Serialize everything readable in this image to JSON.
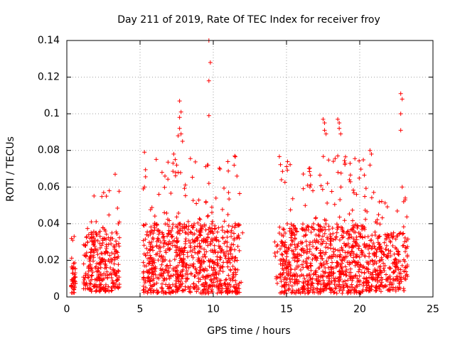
{
  "chart_data": {
    "type": "scatter",
    "title": "Day 211 of 2019, Rate Of TEC Index for receiver froy",
    "xlabel": "GPS time / hours",
    "ylabel": "ROTI / TECUs",
    "xlim": [
      0,
      25
    ],
    "ylim": [
      0,
      0.14
    ],
    "xticks": [
      "0",
      "5",
      "10",
      "15",
      "20",
      "25"
    ],
    "yticks": [
      "0",
      "0.02",
      "0.04",
      "0.06",
      "0.08",
      "0.1",
      "0.12",
      "0.14"
    ],
    "grid": true,
    "marker": "+",
    "color": "#ff0000",
    "bursts": [
      {
        "x_range": [
          0.3,
          0.6
        ],
        "y_base": [
          0.002,
          0.02
        ],
        "y_peak": 0.034,
        "count": 45
      },
      {
        "x_range": [
          1.1,
          3.6
        ],
        "y_base": [
          0.003,
          0.035
        ],
        "y_peak": 0.058,
        "count": 300
      },
      {
        "x_range": [
          5.2,
          11.8
        ],
        "y_base": [
          0.002,
          0.04
        ],
        "y_peak": 0.079,
        "count": 850
      },
      {
        "x_range": [
          14.2,
          14.4
        ],
        "y_base": [
          0.005,
          0.03
        ],
        "y_peak": 0.03,
        "count": 6
      },
      {
        "x_range": [
          14.5,
          20.5
        ],
        "y_base": [
          0.002,
          0.04
        ],
        "y_peak": 0.077,
        "count": 800
      },
      {
        "x_range": [
          20.5,
          23.3
        ],
        "y_base": [
          0.003,
          0.035
        ],
        "y_peak": 0.058,
        "count": 300
      }
    ],
    "points": [
      {
        "x": 0.5,
        "y": 0.033
      },
      {
        "x": 0.4,
        "y": 0.031
      },
      {
        "x": 3.3,
        "y": 0.067
      },
      {
        "x": 2.9,
        "y": 0.058
      },
      {
        "x": 2.7,
        "y": 0.055
      },
      {
        "x": 5.3,
        "y": 0.079
      },
      {
        "x": 5.3,
        "y": 0.06
      },
      {
        "x": 6.5,
        "y": 0.068
      },
      {
        "x": 6.7,
        "y": 0.066
      },
      {
        "x": 7.3,
        "y": 0.078
      },
      {
        "x": 7.4,
        "y": 0.075
      },
      {
        "x": 7.5,
        "y": 0.072
      },
      {
        "x": 7.7,
        "y": 0.107
      },
      {
        "x": 7.8,
        "y": 0.101
      },
      {
        "x": 7.7,
        "y": 0.098
      },
      {
        "x": 7.7,
        "y": 0.092
      },
      {
        "x": 7.6,
        "y": 0.088
      },
      {
        "x": 7.8,
        "y": 0.089
      },
      {
        "x": 7.9,
        "y": 0.085
      },
      {
        "x": 7.6,
        "y": 0.068
      },
      {
        "x": 9.7,
        "y": 0.14
      },
      {
        "x": 9.8,
        "y": 0.128
      },
      {
        "x": 9.7,
        "y": 0.118
      },
      {
        "x": 9.7,
        "y": 0.099
      },
      {
        "x": 9.6,
        "y": 0.072
      },
      {
        "x": 9.7,
        "y": 0.062
      },
      {
        "x": 9.5,
        "y": 0.052
      },
      {
        "x": 9.9,
        "y": 0.049
      },
      {
        "x": 11.0,
        "y": 0.045
      },
      {
        "x": 11.5,
        "y": 0.04
      },
      {
        "x": 12.0,
        "y": 0.035
      },
      {
        "x": 11.9,
        "y": 0.008
      },
      {
        "x": 16.6,
        "y": 0.06
      },
      {
        "x": 16.8,
        "y": 0.058
      },
      {
        "x": 17.5,
        "y": 0.097
      },
      {
        "x": 17.6,
        "y": 0.095
      },
      {
        "x": 17.6,
        "y": 0.091
      },
      {
        "x": 17.7,
        "y": 0.089
      },
      {
        "x": 17.8,
        "y": 0.062
      },
      {
        "x": 18.5,
        "y": 0.097
      },
      {
        "x": 18.6,
        "y": 0.095
      },
      {
        "x": 18.6,
        "y": 0.092
      },
      {
        "x": 18.7,
        "y": 0.089
      },
      {
        "x": 18.5,
        "y": 0.077
      },
      {
        "x": 18.2,
        "y": 0.074
      },
      {
        "x": 19.0,
        "y": 0.073
      },
      {
        "x": 19.3,
        "y": 0.064
      },
      {
        "x": 20.7,
        "y": 0.08
      },
      {
        "x": 20.8,
        "y": 0.078
      },
      {
        "x": 20.7,
        "y": 0.072
      },
      {
        "x": 22.8,
        "y": 0.111
      },
      {
        "x": 22.9,
        "y": 0.108
      },
      {
        "x": 22.8,
        "y": 0.1
      },
      {
        "x": 22.8,
        "y": 0.091
      },
      {
        "x": 22.9,
        "y": 0.06
      },
      {
        "x": 23.1,
        "y": 0.053
      },
      {
        "x": 23.0,
        "y": 0.052
      },
      {
        "x": 14.2,
        "y": 0.03
      },
      {
        "x": 14.3,
        "y": 0.011
      },
      {
        "x": 14.3,
        "y": 0.01
      },
      {
        "x": 14.2,
        "y": 0.024
      }
    ]
  }
}
